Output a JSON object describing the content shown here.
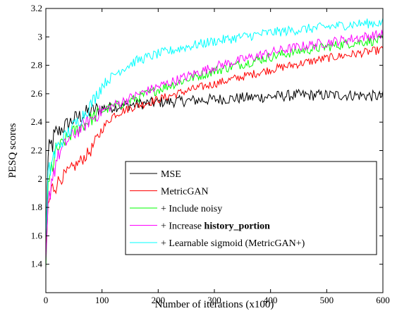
{
  "chart_data": {
    "type": "line",
    "xlabel": "Number of iterations (x100)",
    "ylabel": "PESQ scores",
    "xlim": [
      0,
      600
    ],
    "ylim": [
      1.2,
      3.2
    ],
    "xticks": [
      "0",
      "100",
      "200",
      "300",
      "400",
      "500",
      "600"
    ],
    "yticks": [
      "1.4",
      "1.6",
      "1.8",
      "2",
      "2.2",
      "2.4",
      "2.6",
      "2.8",
      "3",
      "3.2"
    ],
    "grid": false,
    "legend_position": "bottom-right",
    "series": [
      {
        "name": "MSE",
        "color": "#000000",
        "points": [
          [
            0,
            1.5
          ],
          [
            3,
            2.1
          ],
          [
            6,
            2.18
          ],
          [
            10,
            2.24
          ],
          [
            20,
            2.32
          ],
          [
            30,
            2.36
          ],
          [
            50,
            2.42
          ],
          [
            75,
            2.47
          ],
          [
            100,
            2.5
          ],
          [
            150,
            2.52
          ],
          [
            200,
            2.54
          ],
          [
            250,
            2.55
          ],
          [
            300,
            2.56
          ],
          [
            350,
            2.57
          ],
          [
            400,
            2.58
          ],
          [
            450,
            2.59
          ],
          [
            500,
            2.59
          ],
          [
            550,
            2.59
          ],
          [
            600,
            2.58
          ]
        ],
        "noise": 0.04
      },
      {
        "name": "MetricGAN",
        "color": "#ff0000",
        "points": [
          [
            0,
            1.45
          ],
          [
            4,
            1.8
          ],
          [
            10,
            1.92
          ],
          [
            20,
            1.98
          ],
          [
            40,
            2.05
          ],
          [
            60,
            2.12
          ],
          [
            80,
            2.2
          ],
          [
            100,
            2.35
          ],
          [
            120,
            2.45
          ],
          [
            150,
            2.5
          ],
          [
            200,
            2.56
          ],
          [
            250,
            2.62
          ],
          [
            300,
            2.67
          ],
          [
            350,
            2.72
          ],
          [
            400,
            2.77
          ],
          [
            450,
            2.81
          ],
          [
            500,
            2.85
          ],
          [
            550,
            2.88
          ],
          [
            600,
            2.91
          ]
        ],
        "noise": 0.03
      },
      {
        "name": "+ Include noisy",
        "color": "#00ff00",
        "points": [
          [
            0,
            1.4
          ],
          [
            4,
            1.9
          ],
          [
            10,
            2.08
          ],
          [
            20,
            2.2
          ],
          [
            40,
            2.3
          ],
          [
            60,
            2.36
          ],
          [
            80,
            2.42
          ],
          [
            100,
            2.48
          ],
          [
            150,
            2.55
          ],
          [
            200,
            2.63
          ],
          [
            250,
            2.7
          ],
          [
            300,
            2.76
          ],
          [
            350,
            2.81
          ],
          [
            400,
            2.86
          ],
          [
            450,
            2.9
          ],
          [
            500,
            2.93
          ],
          [
            550,
            2.96
          ],
          [
            600,
            2.98
          ]
        ],
        "noise": 0.035
      },
      {
        "name": "+ Increase history_portion",
        "color": "#ff00ff",
        "points": [
          [
            0,
            1.35
          ],
          [
            4,
            1.8
          ],
          [
            10,
            2.0
          ],
          [
            20,
            2.15
          ],
          [
            40,
            2.28
          ],
          [
            60,
            2.35
          ],
          [
            80,
            2.42
          ],
          [
            100,
            2.48
          ],
          [
            150,
            2.57
          ],
          [
            200,
            2.65
          ],
          [
            250,
            2.72
          ],
          [
            300,
            2.79
          ],
          [
            350,
            2.84
          ],
          [
            400,
            2.89
          ],
          [
            450,
            2.93
          ],
          [
            500,
            2.96
          ],
          [
            550,
            2.99
          ],
          [
            600,
            3.02
          ]
        ],
        "noise": 0.035
      },
      {
        "name": "+ Learnable sigmoid (MetricGAN+)",
        "color": "#00ffff",
        "points": [
          [
            0,
            1.55
          ],
          [
            4,
            2.0
          ],
          [
            10,
            2.12
          ],
          [
            20,
            2.22
          ],
          [
            40,
            2.33
          ],
          [
            60,
            2.42
          ],
          [
            80,
            2.52
          ],
          [
            100,
            2.66
          ],
          [
            130,
            2.76
          ],
          [
            160,
            2.83
          ],
          [
            200,
            2.88
          ],
          [
            250,
            2.93
          ],
          [
            300,
            2.97
          ],
          [
            350,
            3.0
          ],
          [
            400,
            3.03
          ],
          [
            450,
            3.05
          ],
          [
            500,
            3.07
          ],
          [
            550,
            3.09
          ],
          [
            600,
            3.1
          ]
        ],
        "noise": 0.035
      }
    ]
  }
}
